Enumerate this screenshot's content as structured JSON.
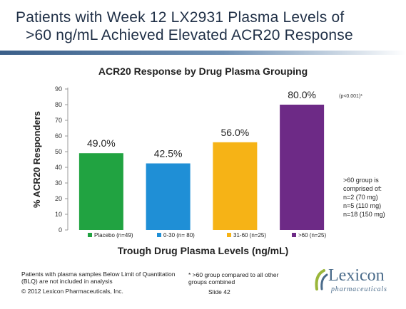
{
  "title_line1": "Patients with Week 12 LX2931 Plasma Levels of",
  "title_line2": ">60 ng/mL Achieved Elevated ACR20 Response",
  "chart_data": {
    "type": "bar",
    "title": "ACR20 Response by Drug Plasma Grouping",
    "xlabel": "Trough Drug Plasma Levels (ng/mL)",
    "ylabel": "% ACR20 Responders",
    "ylim": [
      0,
      90
    ],
    "yticks": [
      0,
      10,
      20,
      30,
      40,
      50,
      60,
      70,
      80,
      90
    ],
    "grid": false,
    "legend_position": "bottom",
    "categories": [
      "Placebo (n=49)",
      "0-30 (n= 80)",
      "31-60 (n=25)",
      ">60 (n=25)"
    ],
    "values": [
      49.0,
      42.5,
      56.0,
      80.0
    ],
    "value_labels": [
      "49.0%",
      "42.5%",
      "56.0%",
      "80.0%"
    ],
    "colors": [
      "#21a341",
      "#1f8fd6",
      "#f6b316",
      "#6d2a86"
    ],
    "annotation": "(p<0.001)*"
  },
  "group_note": [
    ">60 group is",
    "comprised of:",
    "n=2 (70 mg)",
    "n=5 (110 mg)",
    "n=18 (150 mg)"
  ],
  "footnote_left": "Patients with plasma samples Below Limit of Quantitation (BLQ) are not included in analysis",
  "footnote_mid": "* >60 group compared to all other groups combined",
  "copyright": "© 2012 Lexicon Pharmaceuticals, Inc.",
  "slide_number": "Slide 42",
  "logo": {
    "name": "Lexicon",
    "tagline": "pharmaceuticals",
    "icon": "lexicon-logo-icon"
  }
}
